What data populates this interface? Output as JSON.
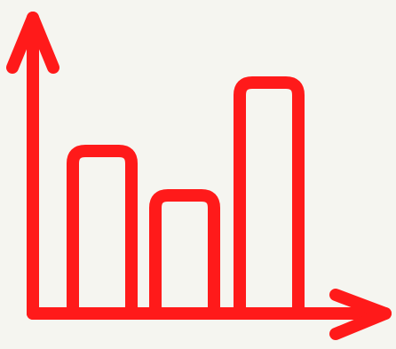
{
  "icon": {
    "name": "bar-chart-icon",
    "stroke_color": "#ff1a1a",
    "background_color": "#f5f5f0",
    "bar_levels": [
      0.55,
      0.4,
      0.78
    ]
  }
}
